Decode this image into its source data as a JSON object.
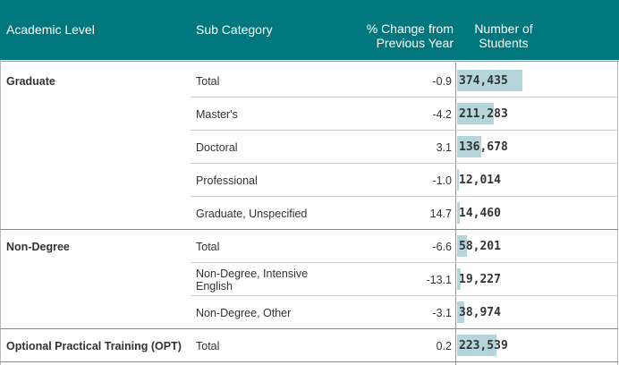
{
  "header": {
    "columns": [
      "Academic Level",
      "Sub Category",
      "% Change from Previous Year",
      "Number of Students"
    ]
  },
  "groups": [
    {
      "level": "Graduate",
      "rows": [
        {
          "sub": "Total",
          "change": "-0.9",
          "students": {
            "value": 374435,
            "label": "374,435"
          }
        },
        {
          "sub": "Master's",
          "change": "-4.2",
          "students": {
            "value": 211283,
            "label": "211,283"
          }
        },
        {
          "sub": "Doctoral",
          "change": "3.1",
          "students": {
            "value": 136678,
            "label": "136,678"
          }
        },
        {
          "sub": "Professional",
          "change": "-1.0",
          "students": {
            "value": 12014,
            "label": "12,014"
          }
        },
        {
          "sub": "Graduate, Unspecified",
          "change": "14.7",
          "students": {
            "value": 14460,
            "label": "14,460"
          }
        }
      ]
    },
    {
      "level": "Non-Degree",
      "rows": [
        {
          "sub": "Total",
          "change": "-6.6",
          "students": {
            "value": 58201,
            "label": "58,201"
          }
        },
        {
          "sub": "Non-Degree, Intensive English",
          "change": "-13.1",
          "students": {
            "value": 19227,
            "label": "19,227"
          }
        },
        {
          "sub": "Non-Degree, Other",
          "change": "-3.1",
          "students": {
            "value": 38974,
            "label": "38,974"
          }
        }
      ]
    },
    {
      "level": "Optional Practical Training (OPT)",
      "rows": [
        {
          "sub": "Total",
          "change": "0.2",
          "students": {
            "value": 223539,
            "label": "223,539"
          }
        }
      ]
    }
  ]
}
